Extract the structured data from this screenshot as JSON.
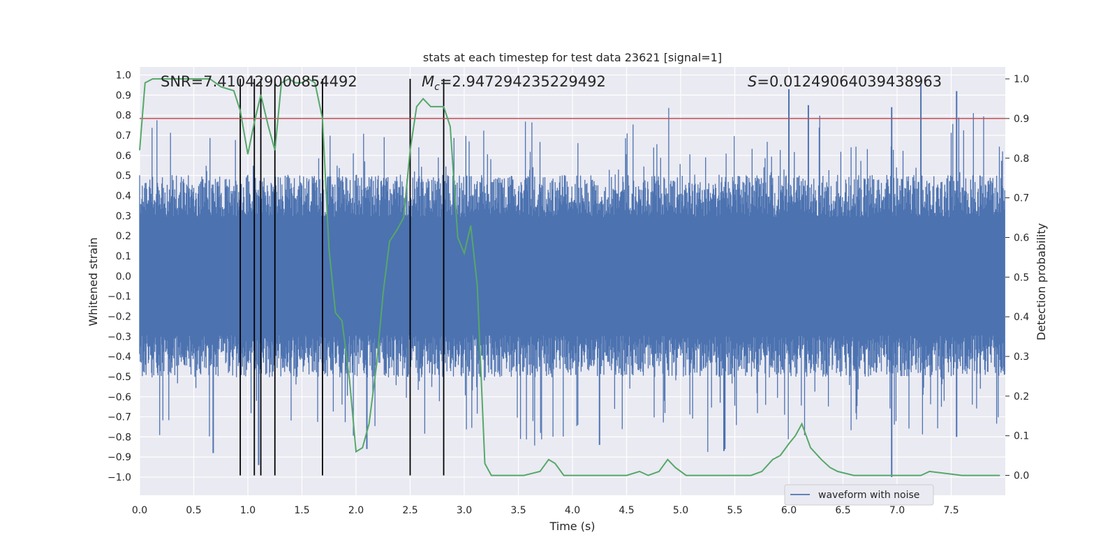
{
  "chart_data": {
    "type": "line",
    "title": "stats at each timestep for test data 23621 [signal=1]",
    "xlabel": "Time (s)",
    "ylabel_left": "Whitened strain",
    "ylabel_right": "Detection probability",
    "xlim": [
      0.0,
      8.0
    ],
    "ylim_left": [
      -1.09,
      1.04
    ],
    "ylim_right": [
      -0.05,
      1.03
    ],
    "x_ticks": [
      "0.0",
      "0.5",
      "1.0",
      "1.5",
      "2.0",
      "2.5",
      "3.0",
      "3.5",
      "4.0",
      "4.5",
      "5.0",
      "5.5",
      "6.0",
      "6.5",
      "7.0",
      "7.5"
    ],
    "y_ticks_left": [
      "1.0",
      "0.9",
      "0.8",
      "0.7",
      "0.6",
      "0.5",
      "0.4",
      "0.3",
      "0.2",
      "0.1",
      "0.0",
      "−0.1",
      "−0.2",
      "−0.3",
      "−0.4",
      "−0.5",
      "−0.6",
      "−0.7",
      "−0.8",
      "−0.9",
      "−1.0"
    ],
    "y_ticks_right": [
      "1.0",
      "0.9",
      "0.8",
      "0.7",
      "0.6",
      "0.5",
      "0.4",
      "0.3",
      "0.2",
      "0.1",
      "0.0"
    ],
    "grid": true,
    "legend": {
      "placement": "lower-right",
      "entries": [
        {
          "label": "waveform with noise",
          "color": "#4c72b0"
        }
      ]
    },
    "annotations": {
      "snr_text": "SNR=7.410429000854492",
      "mc_text": "=2.947294235229492",
      "mc_symbol": "M",
      "mc_subscript": "c",
      "s_text": "=0.01249064039438963",
      "s_symbol": "S"
    },
    "threshold": {
      "axis": "right",
      "value": 0.9,
      "color": "#c44e52"
    },
    "vertical_markers_x": [
      0.93,
      1.06,
      1.12,
      1.25,
      1.69,
      2.5,
      2.81
    ],
    "series": [
      {
        "name": "waveform with noise",
        "axis": "left",
        "color": "#4c72b0",
        "style": "dense-noise",
        "x_range": [
          0.0,
          8.0
        ],
        "typical_abs": 0.42,
        "max_abs": 1.0,
        "peak_spikes": [
          {
            "x": 6.0,
            "y": 0.93
          },
          {
            "x": 7.22,
            "y": 0.95
          },
          {
            "x": 7.55,
            "y": 0.92
          },
          {
            "x": 6.18,
            "y": 0.85
          },
          {
            "x": 6.95,
            "y": 0.84
          },
          {
            "x": 1.1,
            "y": -0.94
          },
          {
            "x": 6.95,
            "y": -1.0
          },
          {
            "x": 5.4,
            "y": -0.87
          },
          {
            "x": 0.68,
            "y": -0.88
          },
          {
            "x": 2.1,
            "y": -0.86
          },
          {
            "x": 7.55,
            "y": -0.8
          },
          {
            "x": 4.25,
            "y": -0.84
          }
        ]
      },
      {
        "name": "",
        "axis": "right",
        "color": "#55a868",
        "x": [
          0.0,
          0.05,
          0.12,
          0.3,
          0.5,
          0.65,
          0.7,
          0.75,
          0.87,
          0.93,
          1.0,
          1.06,
          1.12,
          1.19,
          1.25,
          1.31,
          1.38,
          1.44,
          1.5,
          1.56,
          1.62,
          1.69,
          1.75,
          1.81,
          1.87,
          1.94,
          2.0,
          2.06,
          2.12,
          2.19,
          2.25,
          2.31,
          2.38,
          2.44,
          2.5,
          2.56,
          2.62,
          2.69,
          2.75,
          2.81,
          2.87,
          2.94,
          3.0,
          3.06,
          3.12,
          3.19,
          3.25,
          3.4,
          3.55,
          3.7,
          3.78,
          3.84,
          3.92,
          4.0,
          4.06,
          4.2,
          4.38,
          4.5,
          4.62,
          4.7,
          4.8,
          4.88,
          4.95,
          5.05,
          5.4,
          5.65,
          5.75,
          5.85,
          5.92,
          6.0,
          6.06,
          6.12,
          6.2,
          6.3,
          6.38,
          6.45,
          6.6,
          7.0,
          7.15,
          7.22,
          7.3,
          7.6,
          7.8,
          7.95
        ],
        "y": [
          0.82,
          0.99,
          1.0,
          1.0,
          1.0,
          1.0,
          0.99,
          0.98,
          0.97,
          0.92,
          0.81,
          0.89,
          0.96,
          0.88,
          0.82,
          0.99,
          1.0,
          0.99,
          0.99,
          1.0,
          0.99,
          0.9,
          0.57,
          0.41,
          0.39,
          0.24,
          0.06,
          0.07,
          0.13,
          0.28,
          0.46,
          0.59,
          0.62,
          0.65,
          0.82,
          0.93,
          0.95,
          0.93,
          0.93,
          0.93,
          0.88,
          0.6,
          0.56,
          0.63,
          0.48,
          0.03,
          0.0,
          0.0,
          0.0,
          0.01,
          0.04,
          0.03,
          0.0,
          0.0,
          0.0,
          0.0,
          0.0,
          0.0,
          0.01,
          0.0,
          0.01,
          0.04,
          0.02,
          0.0,
          0.0,
          0.0,
          0.01,
          0.04,
          0.05,
          0.08,
          0.1,
          0.13,
          0.07,
          0.04,
          0.02,
          0.01,
          0.0,
          0.0,
          0.0,
          0.0,
          0.01,
          0.0,
          0.0,
          0.0
        ]
      }
    ]
  }
}
